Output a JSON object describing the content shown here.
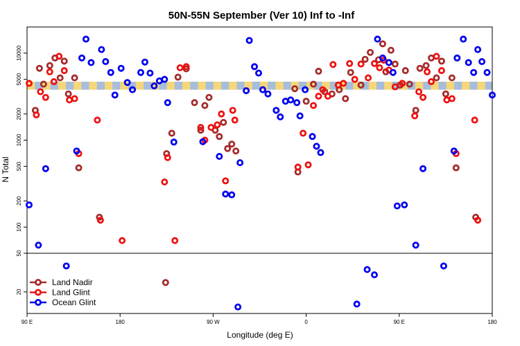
{
  "chart_data": {
    "type": "scatter",
    "title": "50N-55N September (Ver 10)   Inf to -Inf",
    "xlabel": "Longitude (deg E)",
    "ylabel": "N Total",
    "x_ticks": [
      {
        "lon": 90,
        "label": "90 E"
      },
      {
        "lon": 180,
        "label": "180"
      },
      {
        "lon": 270,
        "label": "90 W"
      },
      {
        "lon": 360,
        "label": "0"
      },
      {
        "lon": 450,
        "label": "90 E"
      },
      {
        "lon": 540,
        "label": "180"
      }
    ],
    "xlim": [
      90,
      540
    ],
    "y_log": true,
    "ylim_upper": [
      50,
      20000
    ],
    "y_ticks_upper": [
      {
        "value": 50,
        "label": "50"
      },
      {
        "value": 100,
        "label": "100"
      },
      {
        "value": 200,
        "label": "200"
      },
      {
        "value": 500,
        "label": "500"
      },
      {
        "value": 1000,
        "label": "1000"
      },
      {
        "value": 2000,
        "label": "2000"
      },
      {
        "value": 5000,
        "label": "5000"
      },
      {
        "value": 10000,
        "label": "10000"
      }
    ],
    "ylim_lower": [
      12,
      50
    ],
    "y_ticks_lower": [
      {
        "value": 20,
        "label": "20"
      }
    ],
    "band": {
      "low": 3800,
      "high": 4700,
      "colors": [
        "#f5d77a",
        "#a6bddb"
      ]
    },
    "legend": {
      "position": "bottom-left"
    },
    "series": [
      {
        "name": "Land Nadir",
        "color": "#a52a2a",
        "points": [
          [
            98,
            2200
          ],
          [
            102,
            6700
          ],
          [
            106,
            4400
          ],
          [
            112,
            7200
          ],
          [
            117,
            8800
          ],
          [
            122,
            5200
          ],
          [
            126,
            8100
          ],
          [
            130,
            3400
          ],
          [
            136,
            5200
          ],
          [
            140,
            480
          ],
          [
            160,
            130
          ],
          [
            225,
            700
          ],
          [
            230,
            1200
          ],
          [
            236,
            5300
          ],
          [
            244,
            6600
          ],
          [
            252,
            2700
          ],
          [
            258,
            1300
          ],
          [
            262,
            2500
          ],
          [
            266,
            3100
          ],
          [
            272,
            1300
          ],
          [
            276,
            1100
          ],
          [
            280,
            1600
          ],
          [
            284,
            800
          ],
          [
            288,
            900
          ],
          [
            292,
            750
          ],
          [
            349,
            3900
          ],
          [
            352,
            430
          ],
          [
            360,
            2800
          ],
          [
            367,
            4400
          ],
          [
            372,
            6200
          ],
          [
            378,
            3600
          ],
          [
            385,
            3400
          ],
          [
            392,
            3800
          ],
          [
            398,
            3000
          ],
          [
            403,
            6000
          ],
          [
            413,
            4300
          ],
          [
            417,
            8500
          ],
          [
            422,
            10200
          ],
          [
            430,
            8400
          ],
          [
            434,
            12800
          ],
          [
            437,
            6100
          ],
          [
            442,
            10800
          ],
          [
            446,
            7500
          ],
          [
            451,
            4300
          ],
          [
            456,
            6300
          ],
          [
            460,
            4400
          ],
          [
            466,
            2200
          ],
          [
            470,
            6700
          ],
          [
            476,
            7200
          ],
          [
            481,
            8800
          ],
          [
            486,
            5200
          ],
          [
            491,
            8100
          ],
          [
            495,
            3400
          ],
          [
            501,
            5200
          ],
          [
            505,
            480
          ],
          [
            524,
            130
          ],
          [
            224,
            25
          ]
        ]
      },
      {
        "name": "Land Glint",
        "color": "#ee1111",
        "points": [
          [
            92,
            4500
          ],
          [
            99,
            1950
          ],
          [
            103,
            3600
          ],
          [
            108,
            3100
          ],
          [
            112,
            6100
          ],
          [
            116,
            4700
          ],
          [
            121,
            9200
          ],
          [
            126,
            6300
          ],
          [
            131,
            2900
          ],
          [
            136,
            3000
          ],
          [
            140,
            700
          ],
          [
            158,
            1700
          ],
          [
            161,
            120
          ],
          [
            182,
            70
          ],
          [
            223,
            330
          ],
          [
            226,
            630
          ],
          [
            233,
            70
          ],
          [
            238,
            6800
          ],
          [
            244,
            7000
          ],
          [
            258,
            1400
          ],
          [
            262,
            1000
          ],
          [
            268,
            1400
          ],
          [
            274,
            1500
          ],
          [
            278,
            2000
          ],
          [
            282,
            340
          ],
          [
            289,
            2200
          ],
          [
            291,
            1700
          ],
          [
            352,
            490
          ],
          [
            357,
            1200
          ],
          [
            362,
            520
          ],
          [
            367,
            2500
          ],
          [
            372,
            3200
          ],
          [
            376,
            3800
          ],
          [
            381,
            3200
          ],
          [
            386,
            7400
          ],
          [
            391,
            4300
          ],
          [
            396,
            4500
          ],
          [
            402,
            7600
          ],
          [
            407,
            5000
          ],
          [
            413,
            7500
          ],
          [
            420,
            5200
          ],
          [
            426,
            7600
          ],
          [
            431,
            6800
          ],
          [
            435,
            8300
          ],
          [
            440,
            6400
          ],
          [
            446,
            4100
          ],
          [
            453,
            4500
          ],
          [
            465,
            1900
          ],
          [
            469,
            3600
          ],
          [
            473,
            3100
          ],
          [
            477,
            6100
          ],
          [
            481,
            4700
          ],
          [
            486,
            9200
          ],
          [
            491,
            6300
          ],
          [
            496,
            2900
          ],
          [
            501,
            3000
          ],
          [
            505,
            700
          ],
          [
            523,
            1700
          ],
          [
            526,
            120
          ]
        ]
      },
      {
        "name": "Ocean Glint",
        "color": "#0000ee",
        "points": [
          [
            92,
            180
          ],
          [
            101,
            62
          ],
          [
            108,
            470
          ],
          [
            128,
            37
          ],
          [
            138,
            750
          ],
          [
            143,
            8800
          ],
          [
            147,
            14500
          ],
          [
            152,
            7800
          ],
          [
            162,
            11000
          ],
          [
            166,
            8000
          ],
          [
            171,
            6000
          ],
          [
            175,
            3300
          ],
          [
            181,
            6700
          ],
          [
            187,
            4600
          ],
          [
            192,
            3800
          ],
          [
            200,
            6000
          ],
          [
            204,
            7900
          ],
          [
            209,
            5900
          ],
          [
            213,
            4200
          ],
          [
            218,
            4800
          ],
          [
            223,
            5000
          ],
          [
            226,
            2700
          ],
          [
            232,
            950
          ],
          [
            260,
            960
          ],
          [
            276,
            650
          ],
          [
            282,
            240
          ],
          [
            288,
            235
          ],
          [
            296,
            550
          ],
          [
            302,
            3700
          ],
          [
            305,
            14000
          ],
          [
            310,
            7000
          ],
          [
            314,
            5900
          ],
          [
            318,
            3800
          ],
          [
            323,
            3400
          ],
          [
            331,
            2200
          ],
          [
            335,
            1850
          ],
          [
            340,
            2800
          ],
          [
            345,
            2900
          ],
          [
            351,
            2700
          ],
          [
            354,
            1900
          ],
          [
            359,
            3800
          ],
          [
            366,
            1100
          ],
          [
            370,
            850
          ],
          [
            374,
            720
          ],
          [
            409,
            15
          ],
          [
            419,
            34
          ],
          [
            426,
            30
          ],
          [
            429,
            14500
          ],
          [
            434,
            8800
          ],
          [
            440,
            7800
          ],
          [
            444,
            6000
          ],
          [
            448,
            175
          ],
          [
            455,
            180
          ],
          [
            466,
            62
          ],
          [
            473,
            470
          ],
          [
            493,
            37
          ],
          [
            503,
            750
          ],
          [
            506,
            8800
          ],
          [
            512,
            14500
          ],
          [
            517,
            7800
          ],
          [
            522,
            6000
          ],
          [
            526,
            11000
          ],
          [
            530,
            8000
          ],
          [
            535,
            6000
          ],
          [
            540,
            3300
          ],
          [
            294,
            14
          ]
        ]
      }
    ]
  }
}
